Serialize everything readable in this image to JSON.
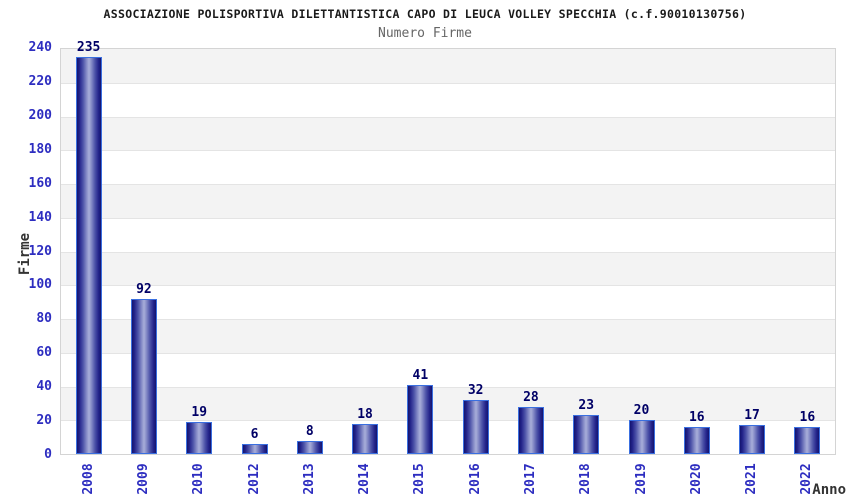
{
  "chart_data": {
    "type": "bar",
    "title": "ASSOCIAZIONE POLISPORTIVA DILETTANTISTICA CAPO DI LEUCA VOLLEY SPECCHIA (c.f.90010130756)",
    "subtitle": "Numero Firme",
    "xlabel": "Anno",
    "ylabel": "Firme",
    "categories": [
      "2008",
      "2009",
      "2010",
      "2012",
      "2013",
      "2014",
      "2015",
      "2016",
      "2017",
      "2018",
      "2019",
      "2020",
      "2021",
      "2022"
    ],
    "values": [
      235,
      92,
      19,
      6,
      8,
      18,
      41,
      32,
      28,
      23,
      20,
      16,
      17,
      16
    ],
    "ylim": [
      0,
      240
    ],
    "ytick_step": 20,
    "ytick_labels": [
      "0",
      "20",
      "40",
      "60",
      "80",
      "100",
      "120",
      "140",
      "160",
      "180",
      "200",
      "220",
      "240"
    ],
    "grid": "alternating horizontal bands of 20 units, gray then white from top, with light gridlines",
    "legend": "none",
    "colors": {
      "bar_edge_dark": "#14146e",
      "bar_center_light": "#a8aed9",
      "bar_outline": "#3a6fe0",
      "tick_label": "#2d2dc0",
      "value_label": "#000066",
      "title": "#1a1a1a",
      "subtitle": "#666666",
      "band_gray": "#f3f3f3",
      "band_white": "#ffffff",
      "gridline": "#e4e4e4",
      "plot_border": "#d4d4d4",
      "background": "#ffffff"
    }
  }
}
